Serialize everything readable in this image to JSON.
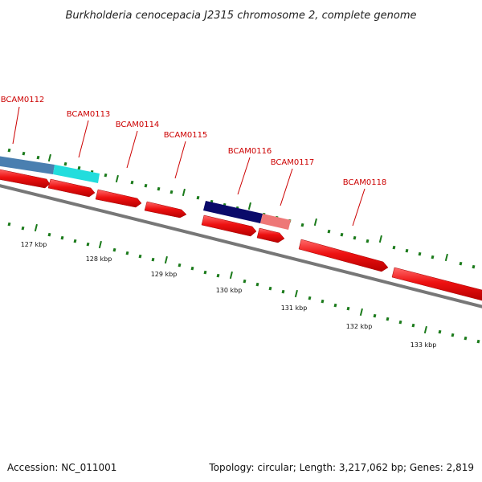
{
  "title": "Burkholderia cenocepacia J2315 chromosome 2, complete genome",
  "footer": {
    "accession": "Accession: NC_011001",
    "stats": "Topology: circular; Length: 3,217,062 bp; Genes: 2,819"
  },
  "colors": {
    "cds_red": "#ee1111",
    "tick_green": "#1a7a1a",
    "backbone_gray": "#777777",
    "gene_steelblue": "#4a7fb0",
    "gene_cyan": "#22dddd",
    "gene_navy": "#0a0a6a",
    "gene_pink": "#ee7777",
    "label_red": "#cc0000"
  },
  "gene_labels": [
    "BCAM0112",
    "BCAM0113",
    "BCAM0114",
    "BCAM0115",
    "BCAM0116",
    "BCAM0117",
    "BCAM0118"
  ],
  "scale_labels": [
    "127 kbp",
    "128 kbp",
    "129 kbp",
    "130 kbp",
    "131 kbp",
    "132 kbp",
    "133 kbp"
  ]
}
